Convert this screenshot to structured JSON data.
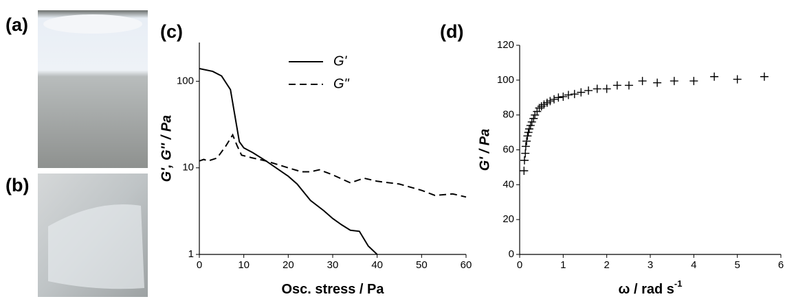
{
  "panels": {
    "a": "(a)",
    "b": "(b)"
  },
  "chart_data": [
    {
      "type": "line",
      "title": "(c)",
      "xlabel": "Osc. stress / Pa",
      "ylabel": "G', G'' / Pa",
      "xlim": [
        0,
        60
      ],
      "xticks": [
        0,
        10,
        20,
        30,
        40,
        50,
        60
      ],
      "ylim": [
        1,
        280
      ],
      "yticks": [
        1,
        10,
        100
      ],
      "yscale": "log",
      "series": [
        {
          "name": "G'",
          "color": "#000000",
          "line_style": "solid",
          "x": [
            0,
            3,
            5,
            7,
            8,
            9,
            10,
            12,
            15,
            20,
            22,
            25,
            28,
            30,
            32,
            34,
            36,
            38,
            40
          ],
          "values": [
            140,
            130,
            115,
            80,
            40,
            20,
            17,
            15,
            12,
            8,
            6.5,
            4.2,
            3.2,
            2.6,
            2.2,
            1.9,
            1.85,
            1.25,
            1
          ]
        },
        {
          "name": "G\"",
          "color": "#000000",
          "line_style": "dashed",
          "x": [
            0,
            1,
            2,
            4,
            6,
            7.5,
            8.5,
            9.5,
            12,
            15,
            20,
            23,
            25,
            27,
            30,
            34,
            37,
            40,
            45,
            50,
            53,
            57,
            60
          ],
          "values": [
            12,
            12.5,
            12,
            13,
            18,
            24,
            18,
            14,
            13,
            12,
            10,
            9,
            9,
            9.5,
            8.3,
            6.7,
            7.6,
            7,
            6.5,
            5.5,
            4.8,
            5,
            4.6
          ]
        }
      ]
    },
    {
      "type": "scatter",
      "title": "(d)",
      "xlabel": "ω / rad s",
      "xlabel_sup": "-1",
      "ylabel": "G' / Pa",
      "xlim": [
        0,
        6
      ],
      "xticks": [
        0,
        1,
        2,
        3,
        4,
        5,
        6
      ],
      "ylim": [
        0,
        120
      ],
      "yticks": [
        0,
        20,
        40,
        60,
        80,
        100,
        120
      ],
      "series": [
        {
          "color": "#000000",
          "marker": "plus",
          "x": [
            0.1,
            0.11,
            0.13,
            0.14,
            0.16,
            0.18,
            0.2,
            0.22,
            0.25,
            0.28,
            0.32,
            0.35,
            0.4,
            0.45,
            0.5,
            0.56,
            0.63,
            0.7,
            0.79,
            0.89,
            1.0,
            1.12,
            1.26,
            1.41,
            1.58,
            1.78,
            2.0,
            2.24,
            2.51,
            2.82,
            3.16,
            3.55,
            4.0,
            4.47,
            5.0,
            5.62
          ],
          "values": [
            48,
            54,
            58,
            62,
            65,
            68,
            70,
            72,
            74,
            76,
            78,
            80,
            82,
            84,
            85,
            86,
            87,
            88,
            89,
            90,
            90.5,
            91.5,
            92,
            93,
            94,
            95,
            95,
            97,
            97,
            99.5,
            98.5,
            99.5,
            99.5,
            102,
            100.5,
            102
          ]
        }
      ]
    }
  ]
}
